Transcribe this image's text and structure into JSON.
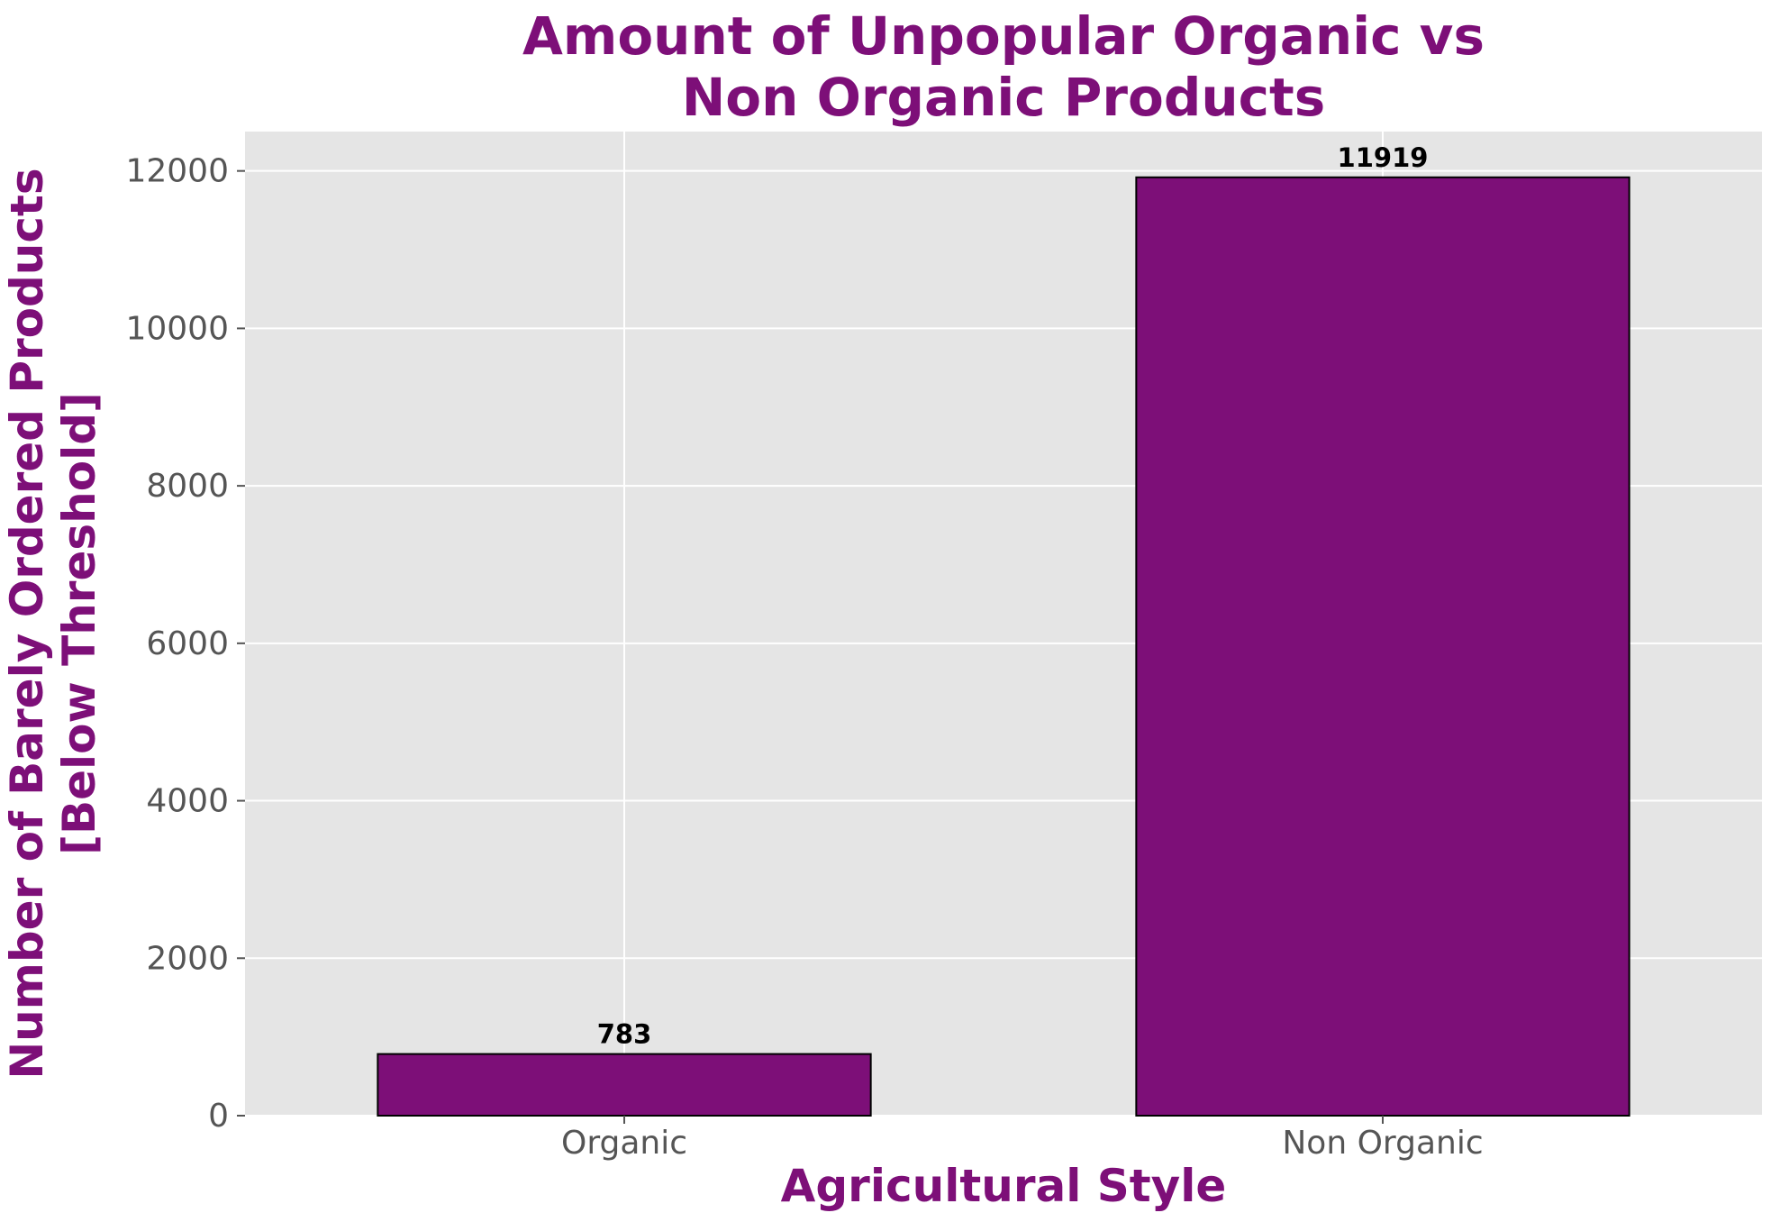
{
  "chart_data": {
    "type": "bar",
    "title": "Amount of Unpopular Organic vs\nNon Organic Products",
    "xlabel": "Agricultural Style",
    "ylabel": "Number of Barely Ordered Products\n[Below Threshold]",
    "categories": [
      "Organic",
      "Non Organic"
    ],
    "values": [
      783,
      11919
    ],
    "data_labels": [
      "783",
      "11919"
    ],
    "ylim": [
      0,
      12500
    ],
    "yticks": [
      0,
      2000,
      4000,
      6000,
      8000,
      10000,
      12000
    ],
    "ytick_labels": [
      "0",
      "2000",
      "4000",
      "6000",
      "8000",
      "10000",
      "12000"
    ],
    "grid": true,
    "style": "ggplot",
    "colors": {
      "bar_fill": "#7d0f78",
      "bar_edge": "#000000",
      "title": "#7d0f78",
      "axis_label": "#7d0f78",
      "tick_label": "#555555",
      "data_label": "#000000",
      "plot_background": "#e5e5e5",
      "grid": "#ffffff"
    }
  }
}
